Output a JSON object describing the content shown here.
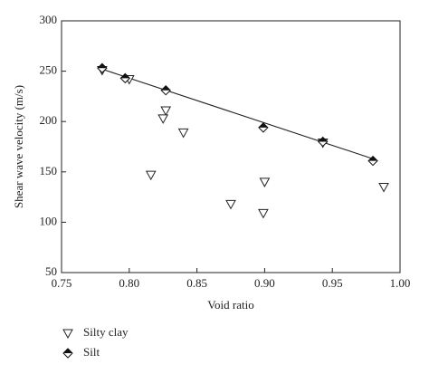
{
  "chart_data": {
    "type": "scatter",
    "xlabel": "Void ratio",
    "ylabel": "Shear wave velocity (m/s)",
    "xlim": [
      0.75,
      1.0
    ],
    "xticks": [
      0.75,
      {
        "value": 0.8,
        "label": "0.80"
      },
      0.85,
      {
        "value": 0.9,
        "label": "0.90"
      },
      0.95,
      {
        "value": 1.0,
        "label": "1.00"
      }
    ],
    "ylim": [
      50,
      300
    ],
    "yticks": [
      50,
      100,
      150,
      200,
      250,
      300
    ],
    "legend": "bottom-left",
    "series": [
      {
        "name": "Silty clay",
        "marker": "triangle-down",
        "color": "#222222",
        "x": [
          0.78,
          0.8,
          0.827,
          0.825,
          0.84,
          0.816,
          0.875,
          0.9,
          0.899,
          0.943,
          0.988
        ],
        "values": [
          251,
          242,
          211,
          203,
          189,
          147,
          118,
          140,
          109,
          179,
          135
        ]
      },
      {
        "name": "Silt",
        "marker": "half-diamond",
        "color": "#111111",
        "x": [
          0.78,
          0.797,
          0.827,
          0.899,
          0.943,
          0.98
        ],
        "values": [
          253,
          243,
          231,
          194,
          180,
          161
        ]
      }
    ],
    "fit": {
      "x": [
        0.78,
        0.98
      ],
      "y": [
        252,
        163
      ],
      "color": "#222222"
    }
  }
}
